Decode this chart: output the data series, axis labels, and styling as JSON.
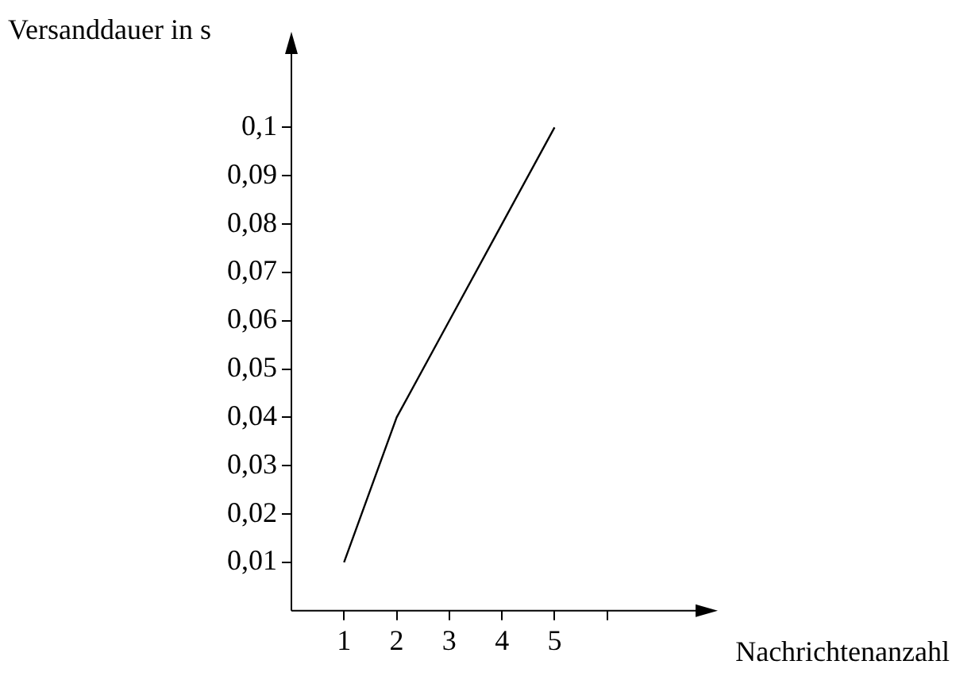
{
  "chart_data": {
    "type": "line",
    "xlabel": "Nachrichtenanzahl",
    "ylabel": "Versanddauer in s",
    "x": [
      1,
      2,
      3,
      4,
      5
    ],
    "series": [
      {
        "color": "#000000",
        "values": [
          0.01,
          0.04,
          0.06,
          0.08,
          0.1
        ]
      }
    ],
    "xlim": [
      0,
      7.8
    ],
    "xticks": [
      1,
      2,
      3,
      4,
      5,
      {
        "value": 6,
        "label": null
      }
    ],
    "ylim": [
      0,
      0.1165
    ],
    "yticks": [
      {
        "value": 0.01,
        "label": "0,01"
      },
      {
        "value": 0.02,
        "label": "0,02"
      },
      {
        "value": 0.03,
        "label": "0,03"
      },
      {
        "value": 0.04,
        "label": "0,04"
      },
      {
        "value": 0.05,
        "label": "0,05"
      },
      {
        "value": 0.06,
        "label": "0,06"
      },
      {
        "value": 0.07,
        "label": "0,07"
      },
      {
        "value": 0.08,
        "label": "0,08"
      },
      {
        "value": 0.09,
        "label": "0,09"
      },
      {
        "value": 0.1,
        "label": "0,1"
      }
    ],
    "grid": false,
    "legend": false,
    "marker": "none",
    "line_style": "solid"
  }
}
